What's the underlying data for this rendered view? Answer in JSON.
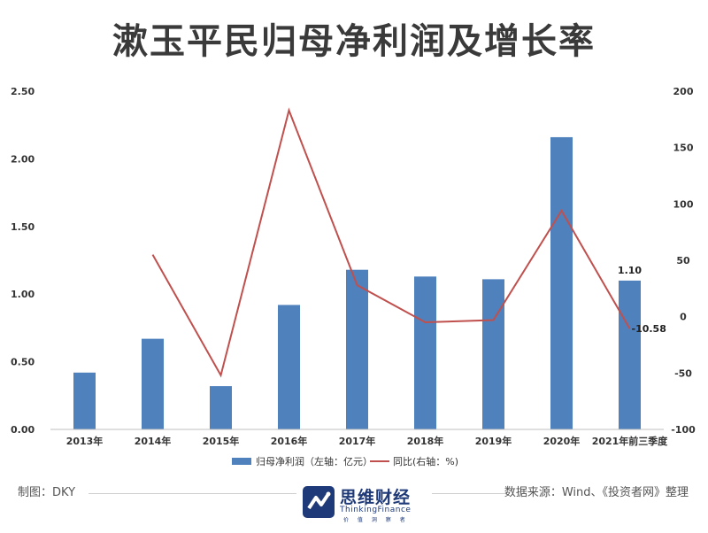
{
  "title": "漱玉平民归母净利润及增长率",
  "footer": {
    "author": "制图：DKY",
    "source": "数据来源：Wind、《投资者网》整理",
    "brand_name": "思维财经",
    "brand_en": "ThinkingFinance",
    "brand_tagline": "价 值 洞 察 者"
  },
  "colors": {
    "bar": "#4f81bd",
    "line": "#c0504d",
    "brand": "#1f3a78"
  },
  "chart_data": {
    "type": "bar",
    "categories": [
      "2013年",
      "2014年",
      "2015年",
      "2016年",
      "2017年",
      "2018年",
      "2019年",
      "2020年",
      "2021年前三季度"
    ],
    "left_axis": {
      "ylim": [
        0,
        2.5
      ],
      "ticks": [
        "0.00",
        "0.50",
        "1.00",
        "1.50",
        "2.00",
        "2.50"
      ]
    },
    "right_axis": {
      "ylim": [
        -100,
        200
      ],
      "ticks": [
        "-100",
        "-50",
        "0",
        "50",
        "100",
        "150",
        "200"
      ]
    },
    "series": [
      {
        "name": "归母净利润（左轴：亿元）",
        "type": "bar",
        "axis": "left",
        "values": [
          0.42,
          0.67,
          0.32,
          0.92,
          1.18,
          1.13,
          1.11,
          2.16,
          1.1
        ]
      },
      {
        "name": "同比(右轴：%)",
        "type": "line",
        "axis": "right",
        "values": [
          null,
          55,
          -52,
          183,
          28,
          -5,
          -3,
          94,
          -10.58
        ]
      }
    ],
    "data_labels": [
      {
        "series": 0,
        "index": 8,
        "text": "1.10"
      },
      {
        "series": 1,
        "index": 8,
        "text": "-10.58"
      }
    ],
    "legend": "bottom",
    "grid": false
  }
}
